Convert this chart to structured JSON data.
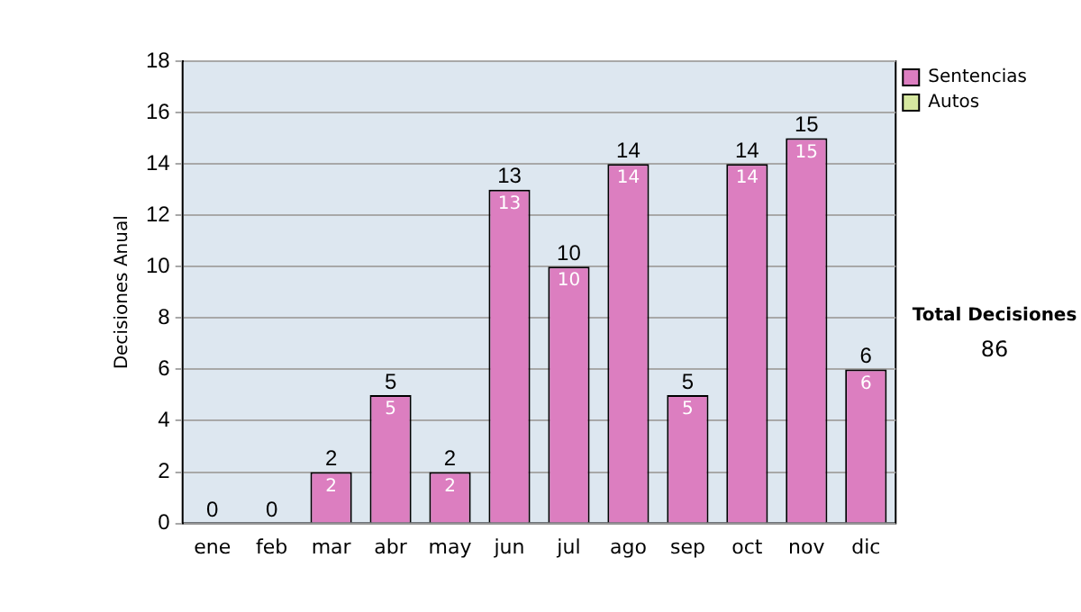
{
  "chart_data": {
    "type": "bar",
    "ylabel": "Decisiones Anual",
    "categories": [
      "ene",
      "feb",
      "mar",
      "abr",
      "may",
      "jun",
      "jul",
      "ago",
      "sep",
      "oct",
      "nov",
      "dic"
    ],
    "series": [
      {
        "name": "Sentencias",
        "color": "#dc7ec0",
        "values": [
          0,
          0,
          2,
          5,
          2,
          13,
          10,
          14,
          5,
          14,
          15,
          6
        ],
        "value_labels": [
          null,
          null,
          "2",
          "5",
          "2",
          "13",
          "10",
          "14",
          "5",
          "14",
          "15",
          "6"
        ]
      },
      {
        "name": "Autos",
        "color": "#d6e8a0",
        "values": [
          0,
          0,
          0,
          0,
          0,
          0,
          0,
          0,
          0,
          0,
          0,
          0
        ]
      }
    ],
    "stacked": true,
    "totals": [
      "0",
      "0",
      "2",
      "5",
      "2",
      "13",
      "10",
      "14",
      "5",
      "14",
      "15",
      "6"
    ],
    "ylim": [
      0,
      18
    ],
    "yticks": [
      0,
      2,
      4,
      6,
      8,
      10,
      12,
      14,
      16,
      18
    ],
    "grid": "y",
    "legend": "right",
    "annotations": [
      "Total Decisiones",
      "86"
    ]
  }
}
